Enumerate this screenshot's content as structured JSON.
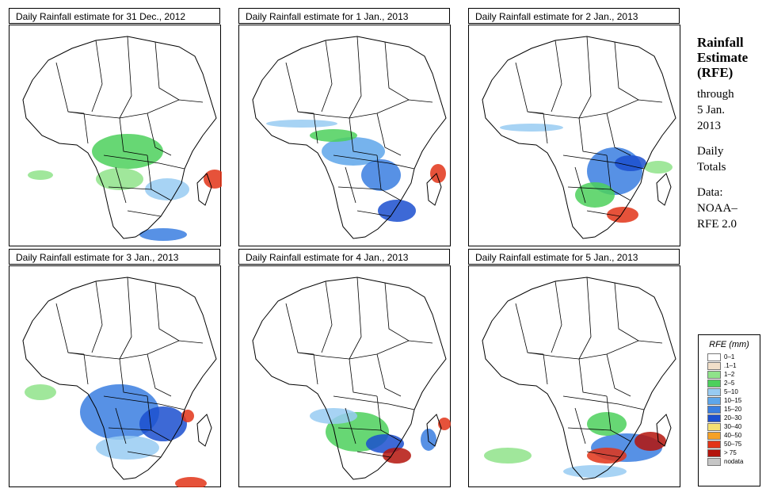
{
  "panels": [
    {
      "title": "Daily Rainfall estimate for  31 Dec., 2012"
    },
    {
      "title": "Daily Rainfall estimate for  1 Jan., 2013"
    },
    {
      "title": "Daily Rainfall estimate for  2 Jan., 2013"
    },
    {
      "title": "Daily Rainfall estimate for  3 Jan., 2013"
    },
    {
      "title": "Daily Rainfall estimate for  4 Jan., 2013"
    },
    {
      "title": "Daily Rainfall estimate for  5 Jan., 2013"
    }
  ],
  "side": {
    "heading_1": "Rainfall",
    "heading_2": "Estimate",
    "heading_3": "(RFE)",
    "through_1": "through",
    "through_2": "5 Jan.",
    "through_3": "2013",
    "daily_1": "Daily",
    "daily_2": "Totals",
    "data_1": "Data:",
    "data_2": "NOAA–",
    "data_3": "RFE 2.0"
  },
  "legend": {
    "title": "RFE (mm)",
    "items": [
      {
        "label": "0–1",
        "color": "#ffffff"
      },
      {
        "label": ".1–1",
        "color": "#f1dfc9"
      },
      {
        "label": "1–2",
        "color": "#8fe38a"
      },
      {
        "label": "2–5",
        "color": "#4cd05c"
      },
      {
        "label": "5–10",
        "color": "#98cbf2"
      },
      {
        "label": "10–15",
        "color": "#5ea6ea"
      },
      {
        "label": "15–20",
        "color": "#3a7ee0"
      },
      {
        "label": "20–30",
        "color": "#1b4fcf"
      },
      {
        "label": "30–40",
        "color": "#f5e073"
      },
      {
        "label": "40–50",
        "color": "#f5a126"
      },
      {
        "label": "50–75",
        "color": "#e23418"
      },
      {
        "label": "> 75",
        "color": "#b4140c"
      },
      {
        "label": "nodata",
        "color": "#c6c6c6"
      }
    ]
  }
}
